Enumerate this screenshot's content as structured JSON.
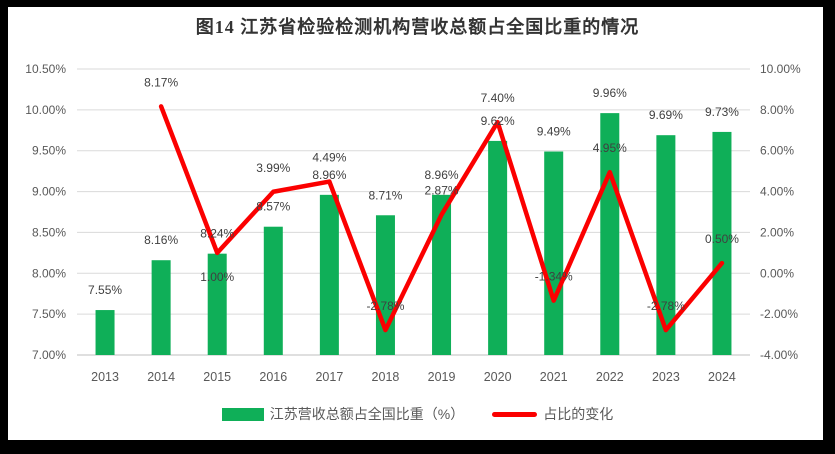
{
  "chart_data": {
    "type": "combo",
    "title": "图14 江苏省检验检测机构营收总额占全国比重的情况",
    "categories": [
      "2013",
      "2014",
      "2015",
      "2016",
      "2017",
      "2018",
      "2019",
      "2020",
      "2021",
      "2022",
      "2023",
      "2024"
    ],
    "series": [
      {
        "name": "江苏营收总额占全国比重（%）",
        "type": "bar",
        "axis": "left",
        "color": "#0FAF58",
        "values": [
          7.55,
          8.16,
          8.24,
          8.57,
          8.96,
          8.71,
          8.96,
          9.62,
          9.49,
          9.96,
          9.69,
          9.73
        ],
        "labels": [
          "7.55%",
          "8.16%",
          "8.24%",
          "8.57%",
          "8.96%",
          "8.71%",
          "8.96%",
          "9.62%",
          "9.49%",
          "9.96%",
          "9.69%",
          "9.73%"
        ]
      },
      {
        "name": "占比的变化",
        "type": "line",
        "axis": "right",
        "color": "#FB0000",
        "values": [
          null,
          8.17,
          1.0,
          3.99,
          4.49,
          -2.78,
          2.87,
          7.4,
          -1.34,
          4.95,
          -2.78,
          0.5
        ],
        "labels": [
          null,
          "8.17%",
          "1.00%",
          "3.99%",
          "4.49%",
          "-2.78%",
          "2.87%",
          "7.40%",
          "-1.34%",
          "4.95%",
          "-2.78%",
          "0.50%"
        ],
        "label_below_indices": [
          2
        ]
      }
    ],
    "left_axis": {
      "min": 7.0,
      "max": 10.5,
      "step": 0.5,
      "ticks": [
        "10.50%",
        "10.00%",
        "9.50%",
        "9.00%",
        "8.50%",
        "8.00%",
        "7.50%",
        "7.00%"
      ]
    },
    "right_axis": {
      "min": -4.0,
      "max": 10.0,
      "step": 2.0,
      "ticks": [
        "10.00%",
        "8.00%",
        "6.00%",
        "4.00%",
        "2.00%",
        "0.00%",
        "-2.00%",
        "-4.00%"
      ]
    },
    "grid": true,
    "legend_position": "bottom",
    "colors": {
      "gridline": "#DADADA",
      "axis_line": "#BFBFBF",
      "label_text": "#404040",
      "tick_text": "#595959",
      "title_text": "#333333",
      "frame": "#000000"
    }
  }
}
